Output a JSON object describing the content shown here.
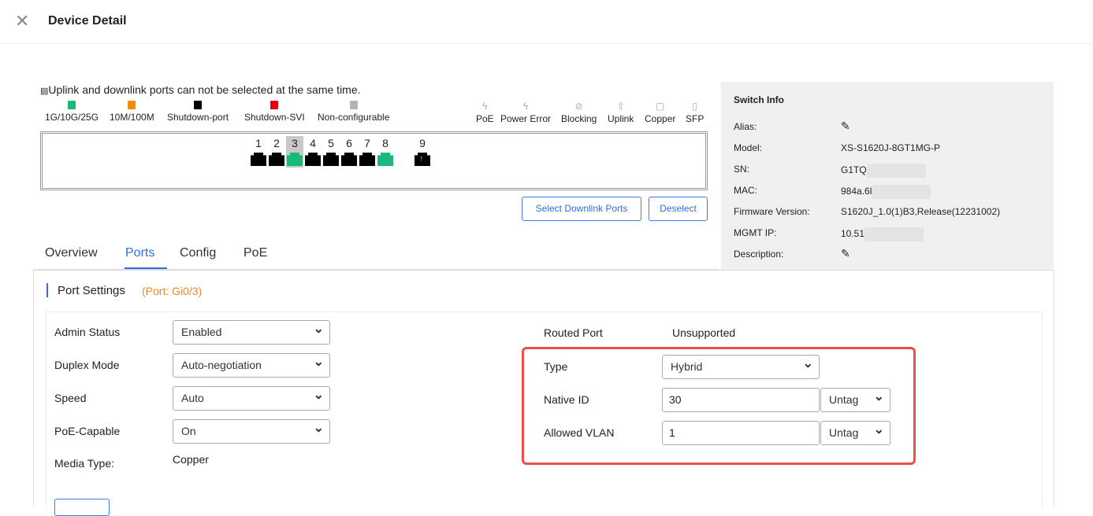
{
  "header": {
    "title": "Device Detail"
  },
  "notice": "Uplink and downlink ports can not be selected at the same time.",
  "legend": [
    {
      "label": "1G/10G/25G",
      "color": "#19b97a"
    },
    {
      "label": "10M/100M",
      "color": "#f28c00"
    },
    {
      "label": "Shutdown-port",
      "color": "#000000"
    },
    {
      "label": "Shutdown-SVI",
      "color": "#e60012"
    },
    {
      "label": "Non-configurable",
      "color": "#b4b4b4"
    }
  ],
  "icon_legend": [
    {
      "label": "PoE",
      "icon": "poe-icon"
    },
    {
      "label": "Power Error",
      "icon": "power-error-icon"
    },
    {
      "label": "Blocking",
      "icon": "blocking-icon"
    },
    {
      "label": "Uplink",
      "icon": "uplink-icon"
    },
    {
      "label": "Copper",
      "icon": "copper-icon"
    },
    {
      "label": "SFP",
      "icon": "sfp-icon"
    }
  ],
  "ports": [
    {
      "n": "1",
      "state": "shutdown"
    },
    {
      "n": "2",
      "state": "shutdown"
    },
    {
      "n": "3",
      "state": "up",
      "selected": true
    },
    {
      "n": "4",
      "state": "shutdown"
    },
    {
      "n": "5",
      "state": "shutdown"
    },
    {
      "n": "6",
      "state": "shutdown"
    },
    {
      "n": "7",
      "state": "shutdown"
    },
    {
      "n": "8",
      "state": "up"
    },
    {
      "n": "9",
      "state": "shutdown",
      "uplink": true
    }
  ],
  "buttons": {
    "select_downlink": "Select Downlink Ports",
    "deselect": "Deselect"
  },
  "tabs": [
    {
      "label": "Overview"
    },
    {
      "label": "Ports",
      "active": true
    },
    {
      "label": "Config"
    },
    {
      "label": "PoE"
    }
  ],
  "switch_info": {
    "title": "Switch Info",
    "rows": [
      {
        "k": "Alias:",
        "v": ""
      },
      {
        "k": "Model:",
        "v": "XS-S1620J-8GT1MG-P"
      },
      {
        "k": "SN:",
        "v": "G1TQ"
      },
      {
        "k": "MAC:",
        "v": "984a.6l"
      },
      {
        "k": "Firmware Version:",
        "v": "S1620J_1.0(1)B3,Release(12231002)"
      },
      {
        "k": "MGMT IP:",
        "v": "10.51"
      },
      {
        "k": "Description:",
        "v": ""
      }
    ]
  },
  "port_settings": {
    "title": "Port Settings",
    "port": "(Port: Gi0/3)",
    "admin_status": {
      "label": "Admin Status",
      "value": "Enabled"
    },
    "duplex": {
      "label": "Duplex Mode",
      "value": "Auto-negotiation"
    },
    "speed": {
      "label": "Speed",
      "value": "Auto"
    },
    "poe": {
      "label": "PoE-Capable",
      "value": "On"
    },
    "media": {
      "label": "Media Type:",
      "value": "Copper"
    },
    "routed": {
      "label": "Routed Port",
      "value": "Unsupported"
    },
    "type": {
      "label": "Type",
      "value": "Hybrid"
    },
    "native": {
      "label": "Native ID",
      "value": "30",
      "tag": "Untag"
    },
    "allowed": {
      "label": "Allowed VLAN",
      "value": "1",
      "tag": "Untag"
    }
  }
}
